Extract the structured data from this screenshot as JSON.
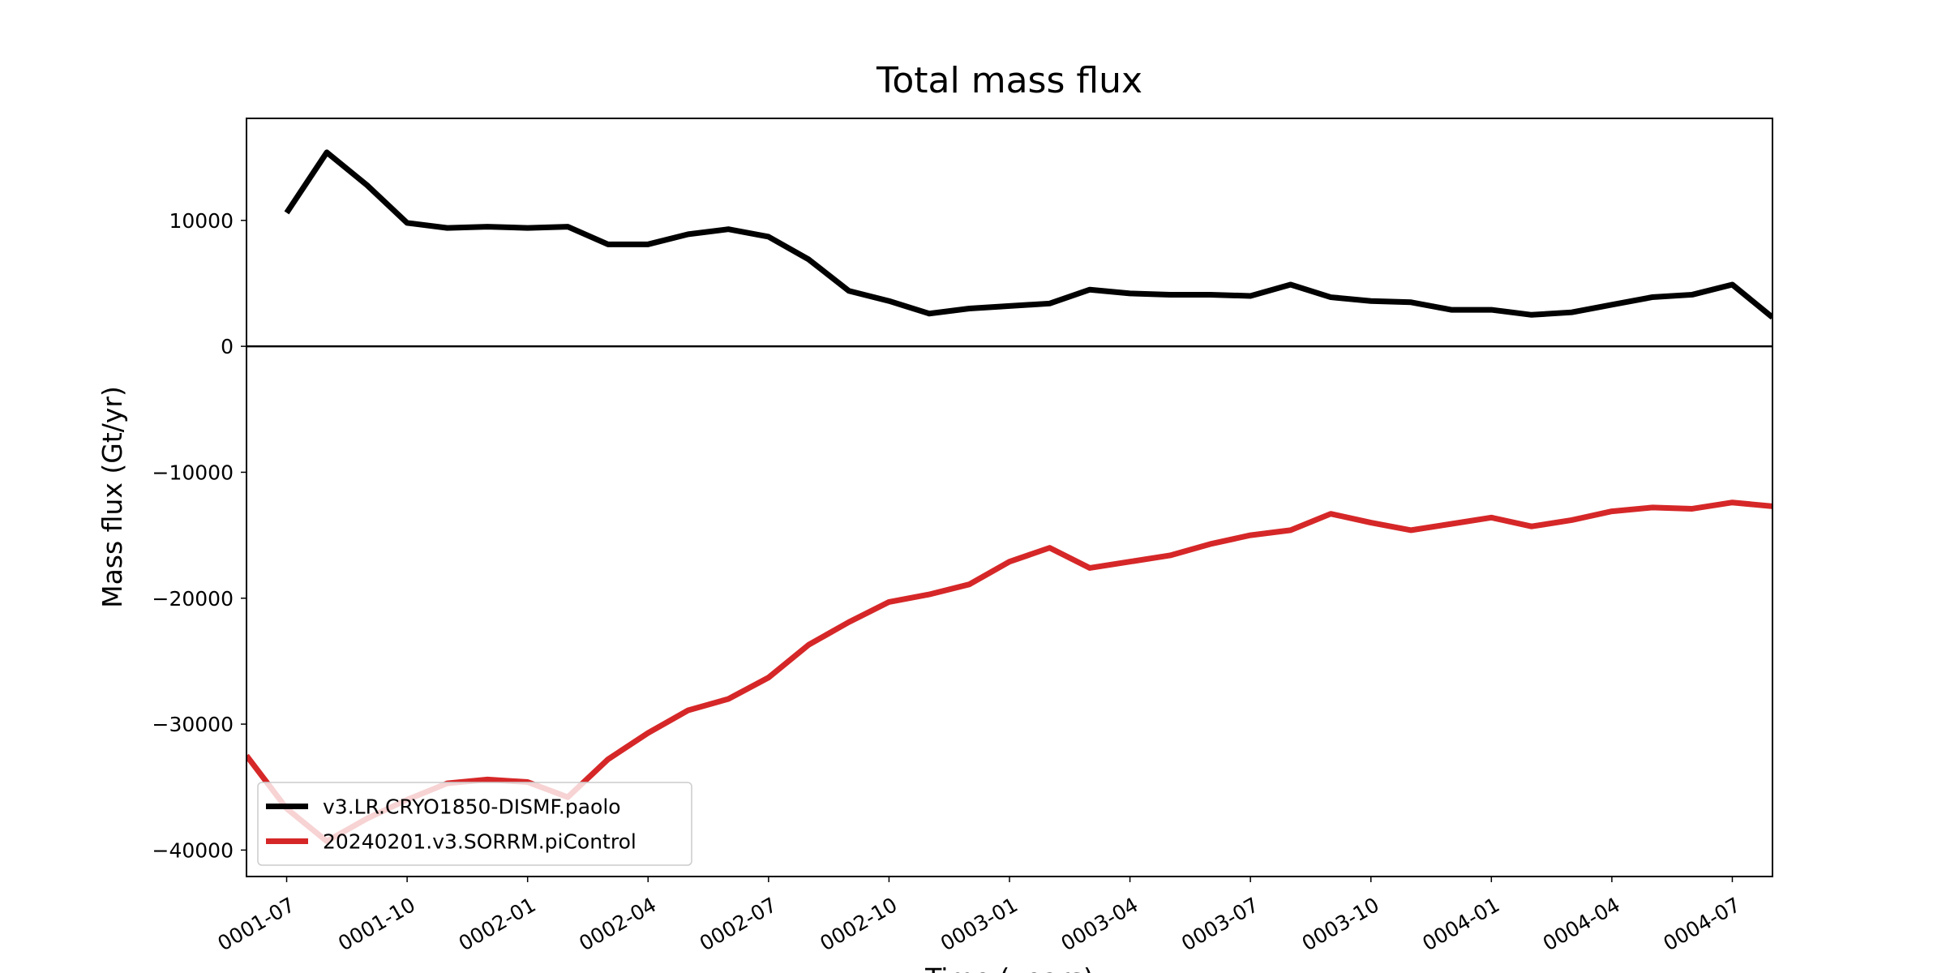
{
  "chart_data": {
    "type": "line",
    "title": "Total mass flux",
    "xlabel": "Time (years)",
    "ylabel": "Mass flux (Gt/yr)",
    "x": [
      "0001-06",
      "0001-07",
      "0001-08",
      "0001-09",
      "0001-10",
      "0001-11",
      "0001-12",
      "0002-01",
      "0002-02",
      "0002-03",
      "0002-04",
      "0002-05",
      "0002-06",
      "0002-07",
      "0002-08",
      "0002-09",
      "0002-10",
      "0002-11",
      "0002-12",
      "0003-01",
      "0003-02",
      "0003-03",
      "0003-04",
      "0003-05",
      "0003-06",
      "0003-07",
      "0003-08",
      "0003-09",
      "0003-10",
      "0003-11",
      "0003-12",
      "0004-01",
      "0004-02",
      "0004-03",
      "0004-04",
      "0004-05",
      "0004-06",
      "0004-07",
      "0004-08"
    ],
    "series": [
      {
        "name": "v3.LR.CRYO1850-DISMF.paolo",
        "color": "#000000",
        "values": [
          null,
          10600,
          15400,
          12800,
          9800,
          9400,
          9500,
          9400,
          9500,
          8100,
          8100,
          8900,
          9300,
          8700,
          6900,
          4400,
          3600,
          2600,
          3000,
          3200,
          3400,
          4500,
          4200,
          4100,
          4100,
          4000,
          4900,
          3900,
          3600,
          3500,
          2900,
          2900,
          2500,
          2700,
          3300,
          3900,
          4100,
          4900,
          2300
        ]
      },
      {
        "name": "20240201.v3.SORRM.piControl",
        "color": "#d62728",
        "values": [
          -32500,
          -36700,
          -39300,
          -37500,
          -36000,
          -34700,
          -34400,
          -34600,
          -35800,
          -32800,
          -30700,
          -28900,
          -28000,
          -26300,
          -23700,
          -21900,
          -20300,
          -19700,
          -18900,
          -17100,
          -16000,
          -17600,
          -17100,
          -16600,
          -15700,
          -15000,
          -14600,
          -13300,
          -14000,
          -14600,
          -14100,
          -13600,
          -14300,
          -13800,
          -13100,
          -12800,
          -12900,
          -12400,
          -12700
        ]
      }
    ],
    "xlim": [
      "0001-06",
      "0004-08"
    ],
    "xticks": [
      "0001-07",
      "0001-10",
      "0002-01",
      "0002-04",
      "0002-07",
      "0002-10",
      "0003-01",
      "0003-04",
      "0003-07",
      "0003-10",
      "0004-01",
      "0004-04",
      "0004-07"
    ],
    "ylim": [
      -42100,
      18100
    ],
    "yticks": [
      -40000,
      -30000,
      -20000,
      -10000,
      0,
      10000
    ],
    "reference_line": 0,
    "legend": "lower left",
    "grid": false
  }
}
